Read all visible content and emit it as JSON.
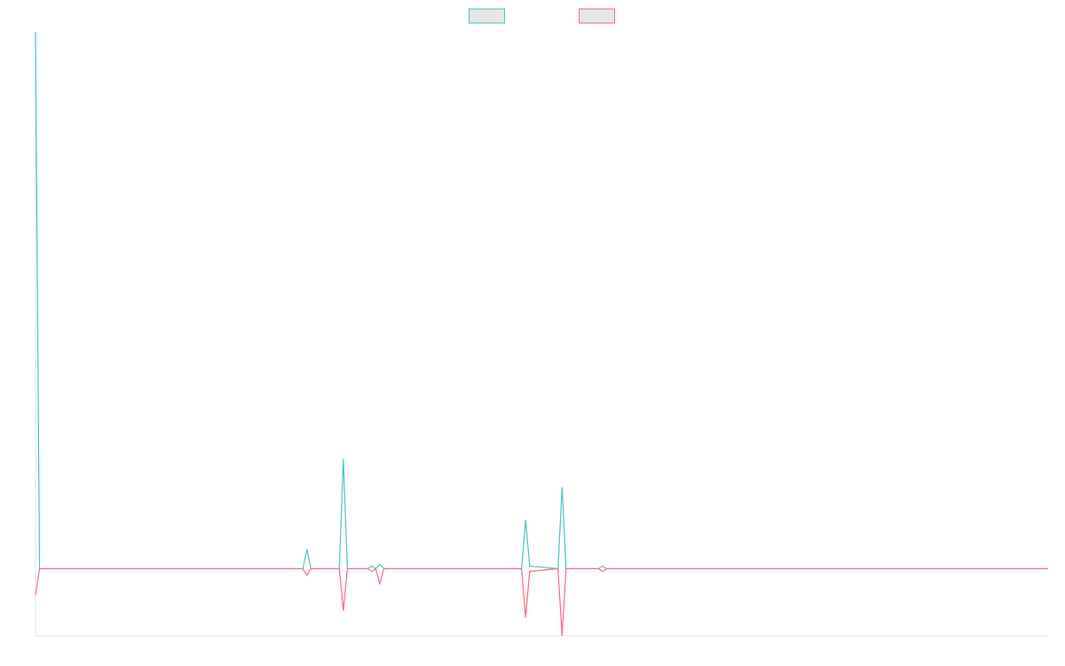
{
  "chart_data": {
    "type": "line",
    "x": [
      0,
      1,
      66,
      67,
      68,
      75,
      76,
      77,
      82,
      83,
      84,
      85,
      86,
      120,
      121,
      122,
      129,
      130,
      131,
      139,
      140,
      141,
      250
    ],
    "series": [
      {
        "color": "#4bc0c0",
        "values": [
          100,
          0,
          0,
          3.6,
          0,
          0,
          20.5,
          0,
          0,
          0.5,
          0,
          0.8,
          0,
          0,
          9.1,
          0.5,
          0,
          15.2,
          0,
          0,
          0.5,
          0,
          0
        ]
      },
      {
        "color": "#ff6384",
        "values": [
          -5,
          0,
          0,
          -1.2,
          0,
          0,
          -7.8,
          0,
          0,
          -0.5,
          0,
          -2.8,
          0,
          0,
          -9.1,
          -0.5,
          0,
          -12.5,
          0,
          0,
          -0.5,
          0,
          0
        ]
      }
    ],
    "xlim": [
      0,
      250
    ],
    "ylim": [
      -12.5,
      100
    ],
    "legend": "top"
  }
}
